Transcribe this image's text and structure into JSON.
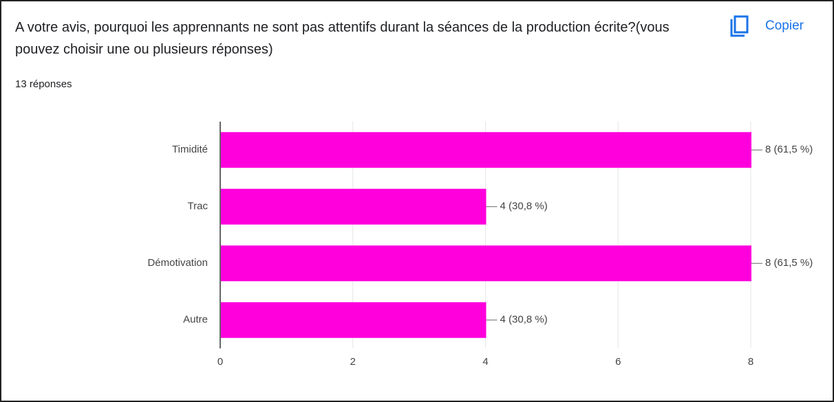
{
  "copy_label": "Copier",
  "chart_data": {
    "type": "hbar",
    "title": "A votre avis, pourquoi les apprennants ne sont pas attentifs durant la séances de la production écrite?(vous pouvez choisir une ou plusieurs réponses)",
    "subtitle": "13 réponses",
    "categories": [
      "Timidité",
      "Trac",
      "Démotivation",
      "Autre"
    ],
    "values": [
      8,
      4,
      8,
      4
    ],
    "value_labels": [
      "8 (61,5 %)",
      "4 (30,8 %)",
      "8 (61,5 %)",
      "4 (30,8 %)"
    ],
    "color": "#ff00dd",
    "xlim": [
      0,
      8
    ],
    "xticks": [
      0,
      2,
      4,
      6,
      8
    ],
    "grid": true
  }
}
